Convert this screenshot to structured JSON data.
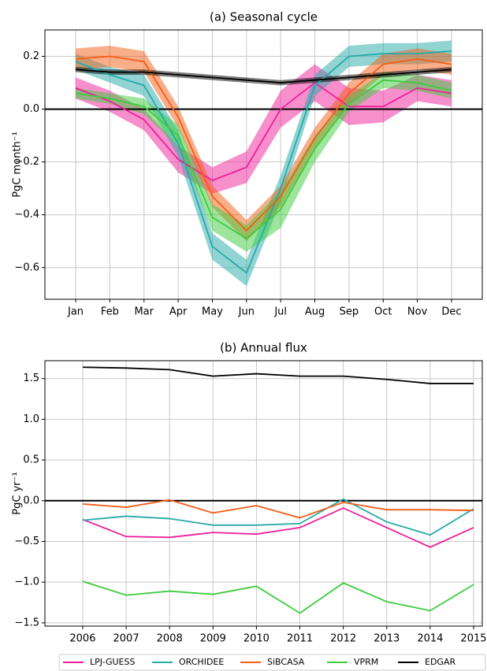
{
  "chart_data": [
    {
      "type": "line",
      "title": "(a) Seasonal cycle",
      "ylabel": "PgC month⁻¹",
      "categories": [
        "Jan",
        "Feb",
        "Mar",
        "Apr",
        "May",
        "Jun",
        "Jul",
        "Aug",
        "Sep",
        "Oct",
        "Nov",
        "Dec"
      ],
      "ylim": [
        -0.72,
        0.3
      ],
      "yticks": [
        {
          "value": -0.6,
          "label": "−0.6"
        },
        {
          "value": -0.4,
          "label": "−0.4"
        },
        {
          "value": -0.2,
          "label": "−0.2"
        },
        {
          "value": 0,
          "label": "0.0"
        },
        0.2
      ],
      "grid": true,
      "zero_line": true,
      "series": [
        {
          "name": "LPJ-GUESS",
          "color": "#ee1f9a",
          "values": [
            0.08,
            0.03,
            -0.04,
            -0.19,
            -0.27,
            -0.22,
            0.0,
            0.1,
            0.01,
            0.01,
            0.08,
            0.06
          ],
          "lower": [
            0.04,
            -0.01,
            -0.08,
            -0.24,
            -0.32,
            -0.28,
            -0.07,
            0.03,
            -0.06,
            -0.05,
            0.03,
            0.01
          ],
          "upper": [
            0.12,
            0.07,
            0.0,
            -0.14,
            -0.22,
            -0.16,
            0.07,
            0.17,
            0.08,
            0.07,
            0.13,
            0.11
          ]
        },
        {
          "name": "ORCHIDEE",
          "color": "#26aaa8",
          "values": [
            0.18,
            0.13,
            0.09,
            -0.13,
            -0.52,
            -0.62,
            -0.3,
            0.09,
            0.2,
            0.21,
            0.21,
            0.22
          ],
          "lower": [
            0.15,
            0.1,
            0.05,
            -0.18,
            -0.57,
            -0.67,
            -0.35,
            0.05,
            0.16,
            0.17,
            0.17,
            0.18
          ],
          "upper": [
            0.21,
            0.16,
            0.13,
            -0.08,
            -0.47,
            -0.57,
            -0.25,
            0.13,
            0.24,
            0.25,
            0.25,
            0.26
          ]
        },
        {
          "name": "SiBCASA",
          "color": "#f45d16",
          "values": [
            0.19,
            0.2,
            0.18,
            -0.03,
            -0.33,
            -0.46,
            -0.33,
            -0.11,
            0.06,
            0.17,
            0.19,
            0.17
          ],
          "lower": [
            0.15,
            0.16,
            0.14,
            -0.07,
            -0.37,
            -0.5,
            -0.37,
            -0.15,
            0.02,
            0.13,
            0.15,
            0.13
          ],
          "upper": [
            0.23,
            0.24,
            0.22,
            0.01,
            -0.29,
            -0.42,
            -0.29,
            -0.07,
            0.1,
            0.21,
            0.23,
            0.21
          ]
        },
        {
          "name": "VPRM",
          "color": "#3ccc3c",
          "values": [
            0.06,
            0.04,
            0.01,
            -0.1,
            -0.41,
            -0.49,
            -0.38,
            -0.15,
            0.02,
            0.11,
            0.1,
            0.07
          ],
          "lower": [
            0.04,
            0.02,
            -0.02,
            -0.14,
            -0.46,
            -0.54,
            -0.45,
            -0.2,
            -0.01,
            0.08,
            0.07,
            0.04
          ],
          "upper": [
            0.08,
            0.06,
            0.04,
            -0.06,
            -0.36,
            -0.44,
            -0.31,
            -0.1,
            0.05,
            0.14,
            0.13,
            0.1
          ]
        },
        {
          "name": "EDGAR",
          "color": "#000000",
          "values": [
            0.15,
            0.14,
            0.14,
            0.13,
            0.12,
            0.11,
            0.1,
            0.11,
            0.12,
            0.13,
            0.14,
            0.15
          ],
          "lower": [
            0.14,
            0.13,
            0.13,
            0.12,
            0.11,
            0.1,
            0.09,
            0.1,
            0.11,
            0.12,
            0.13,
            0.14
          ],
          "upper": [
            0.16,
            0.15,
            0.15,
            0.14,
            0.13,
            0.12,
            0.11,
            0.12,
            0.13,
            0.14,
            0.15,
            0.16
          ]
        }
      ]
    },
    {
      "type": "line",
      "title": "(b) Annual flux",
      "ylabel": "PgC yr⁻¹",
      "x": [
        2006,
        2007,
        2008,
        2009,
        2010,
        2011,
        2012,
        2013,
        2014,
        2015
      ],
      "xlim": [
        2005.13,
        2015.2
      ],
      "xticks": [
        2006,
        2007,
        2008,
        2009,
        2010,
        2011,
        2012,
        2013,
        2014,
        2015
      ],
      "ylim": [
        -1.54,
        1.72
      ],
      "yticks": [
        {
          "value": -1.5,
          "label": "−1.5"
        },
        {
          "value": -1.0,
          "label": "−1.0"
        },
        {
          "value": -0.5,
          "label": "−0.5"
        },
        {
          "value": 0,
          "label": "0.0"
        },
        0.5,
        {
          "value": 1.0,
          "label": "1.0"
        },
        1.5
      ],
      "grid": true,
      "zero_line": true,
      "series": [
        {
          "name": "LPJ-GUESS",
          "color": "#ee1f9a",
          "values": [
            -0.23,
            -0.44,
            -0.45,
            -0.39,
            -0.41,
            -0.33,
            -0.09,
            -0.33,
            -0.57,
            -0.33
          ]
        },
        {
          "name": "ORCHIDEE",
          "color": "#26aaa8",
          "values": [
            -0.24,
            -0.19,
            -0.22,
            -0.3,
            -0.3,
            -0.28,
            0.02,
            -0.26,
            -0.42,
            -0.1
          ]
        },
        {
          "name": "SiBCASA",
          "color": "#f45d16",
          "values": [
            -0.04,
            -0.08,
            0.01,
            -0.15,
            -0.06,
            -0.21,
            -0.02,
            -0.11,
            -0.11,
            -0.12
          ]
        },
        {
          "name": "VPRM",
          "color": "#3ccc3c",
          "values": [
            -0.99,
            -1.16,
            -1.11,
            -1.15,
            -1.05,
            -1.38,
            -1.01,
            -1.24,
            -1.35,
            -1.03
          ]
        },
        {
          "name": "EDGAR",
          "color": "#000000",
          "values": [
            1.64,
            1.63,
            1.61,
            1.53,
            1.56,
            1.53,
            1.53,
            1.49,
            1.44,
            1.44
          ]
        }
      ]
    }
  ]
}
